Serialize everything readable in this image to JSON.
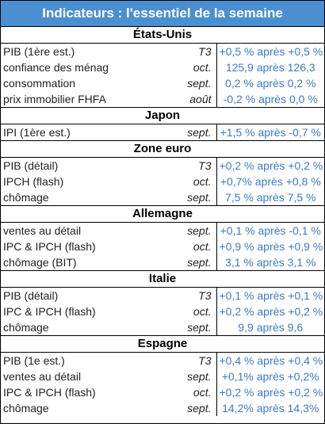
{
  "title": "Indicateurs : l'essentiel de la semaine",
  "sections": [
    {
      "name": "États-Unis",
      "rows": [
        {
          "label": "PIB (1ère est.)",
          "period": "T3",
          "value": "+0,5 % après +0,5 %"
        },
        {
          "label": "confiance des ménages",
          "period": "oct.",
          "value": "125,9 après 126,3"
        },
        {
          "label": "consommation",
          "period": "sept.",
          "value": "0,2 % après 0,2 %"
        },
        {
          "label": "prix immobilier FHFA",
          "period": "août",
          "value": "-0,2 % après 0,0 %"
        }
      ]
    },
    {
      "name": "Japon",
      "rows": [
        {
          "label": "IPI (1ère est.)",
          "period": "sept.",
          "value": "+1,5 % après -0,7 %"
        }
      ]
    },
    {
      "name": "Zone euro",
      "rows": [
        {
          "label": "PIB (détail)",
          "period": "T3",
          "value": "+0,2 % après +0,2 %"
        },
        {
          "label": "IPCH (flash)",
          "period": "oct.",
          "value": "+0,7% après +0,8 %"
        },
        {
          "label": "chômage",
          "period": "sept.",
          "value": "7,5 % après 7,5 %"
        }
      ]
    },
    {
      "name": "Allemagne",
      "rows": [
        {
          "label": "ventes au détail",
          "period": "sept.",
          "value": "+0,1 % après -0,1 %"
        },
        {
          "label": "IPC & IPCH (flash)",
          "period": "oct.",
          "value": "+0,9 % après +0,9 %"
        },
        {
          "label": "chômage (BIT)",
          "period": "sept.",
          "value": "3,1 % après  3,1 %"
        }
      ]
    },
    {
      "name": "Italie",
      "rows": [
        {
          "label": "PIB (détail)",
          "period": "T3",
          "value": "+0,1 % après +0,1 %"
        },
        {
          "label": "IPC & IPCH (flash)",
          "period": "oct.",
          "value": "+0,2 % après +0,2 %"
        },
        {
          "label": "chômage",
          "period": "sept.",
          "value": "9,9 après 9,6"
        }
      ]
    },
    {
      "name": "Espagne",
      "rows": [
        {
          "label": "PIB (1e est.)",
          "period": "T3",
          "value": "+0,4 % après +0,4 %"
        },
        {
          "label": "ventes au détail",
          "period": "sept.",
          "value": "+0,1% après +0,2%"
        },
        {
          "label": "IPC & IPCH (flash)",
          "period": "oct.",
          "value": "+0,2 % après +0,2 %"
        },
        {
          "label": "chômage",
          "period": "sept.",
          "value": "14,2% après 14,3%"
        }
      ]
    }
  ]
}
